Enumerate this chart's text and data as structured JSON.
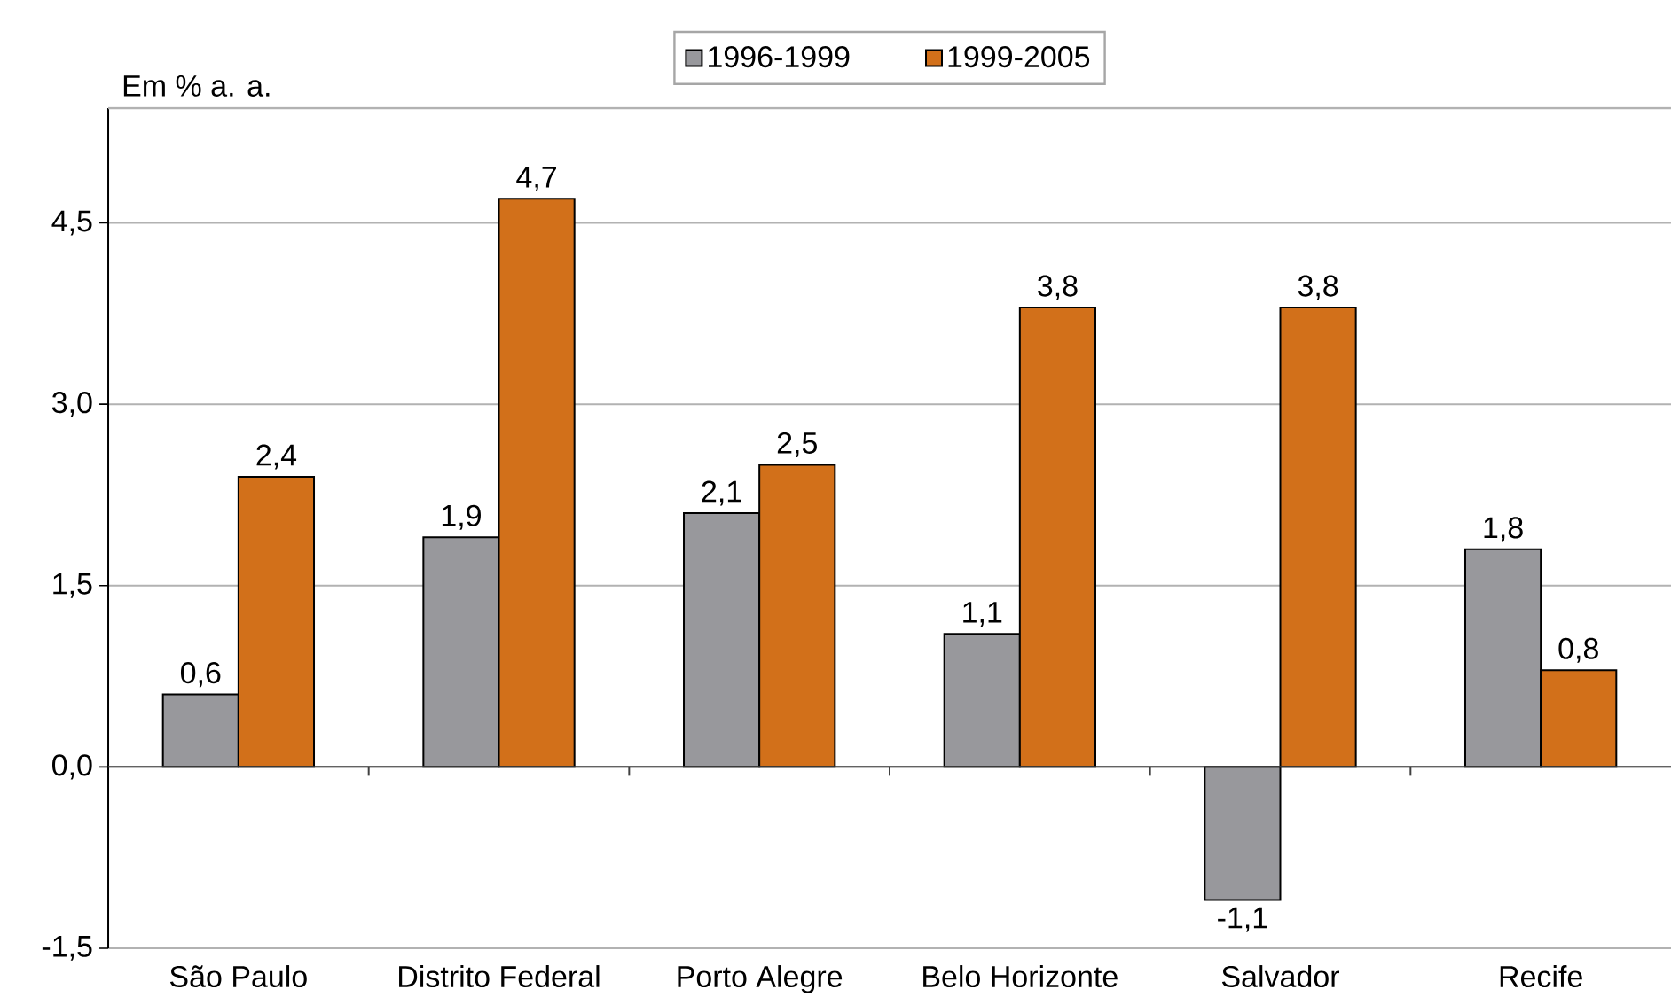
{
  "chart_data": {
    "type": "bar",
    "ylabel": "Em % a. a.",
    "categories": [
      "São Paulo",
      "Distrito Federal",
      "Porto Alegre",
      "Belo Horizonte",
      "Salvador",
      "Recife"
    ],
    "series": [
      {
        "name": "1996-1999",
        "color": "#98989c",
        "values": [
          0.6,
          1.9,
          2.1,
          1.1,
          -1.1,
          1.8
        ],
        "value_labels": [
          "0,6",
          "1,9",
          "2,1",
          "1,1",
          "-1,1",
          "1,8"
        ]
      },
      {
        "name": "1999-2005",
        "color": "#d2701a",
        "values": [
          2.4,
          4.7,
          2.5,
          3.8,
          3.8,
          0.8
        ],
        "value_labels": [
          "2,4",
          "4,7",
          "2,5",
          "3,8",
          "3,8",
          "0,8"
        ]
      }
    ],
    "ylim": [
      -1.5,
      5.45
    ],
    "yticks": [
      {
        "value": -1.5,
        "label": "-1,5"
      },
      {
        "value": 0,
        "label": "0,0"
      },
      {
        "value": 1.5,
        "label": "1,5"
      },
      {
        "value": 3,
        "label": "3,0"
      },
      {
        "value": 4.5,
        "label": "4,5"
      }
    ],
    "grid": "y",
    "legend": "top"
  }
}
